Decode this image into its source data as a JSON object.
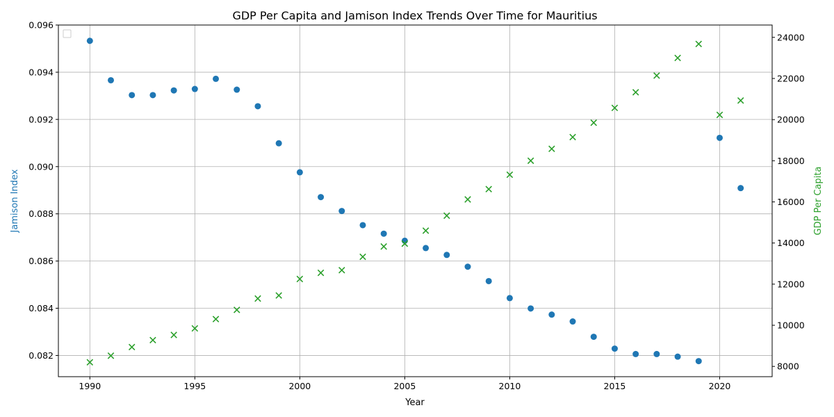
{
  "chart_data": {
    "type": "scatter",
    "title": "GDP Per Capita and Jamison Index Trends Over Time for Mauritius",
    "xlabel": "Year",
    "ylabel_left": "Jamison Index",
    "ylabel_right": "GDP Per Capita",
    "xlim": [
      1988.5,
      2022.5
    ],
    "ylim_left": [
      0.0811,
      0.096
    ],
    "ylim_right": [
      7500,
      24600
    ],
    "x_ticks": [
      1990,
      1995,
      2000,
      2005,
      2010,
      2015,
      2020
    ],
    "y_left_ticks": [
      "0.082",
      "0.084",
      "0.086",
      "0.088",
      "0.090",
      "0.092",
      "0.094",
      "0.096"
    ],
    "y_right_ticks": [
      8000,
      10000,
      12000,
      14000,
      16000,
      18000,
      20000,
      22000,
      24000
    ],
    "grid": true,
    "legend": "top-left (empty)",
    "series": [
      {
        "axis": "left",
        "marker": "circle",
        "color": "#1f77b4",
        "x": [
          1990,
          1991,
          1992,
          1993,
          1994,
          1995,
          1996,
          1997,
          1998,
          1999,
          2000,
          2001,
          2002,
          2003,
          2004,
          2005,
          2006,
          2007,
          2008,
          2009,
          2010,
          2011,
          2012,
          2013,
          2014,
          2015,
          2016,
          2017,
          2018,
          2019,
          2020,
          2021
        ],
        "values": [
          0.09533,
          0.09366,
          0.09303,
          0.09303,
          0.09323,
          0.09329,
          0.09372,
          0.09326,
          0.09256,
          0.09099,
          0.08976,
          0.08871,
          0.08812,
          0.08752,
          0.08716,
          0.08686,
          0.08655,
          0.08626,
          0.08576,
          0.08515,
          0.08443,
          0.08399,
          0.08373,
          0.08344,
          0.08279,
          0.08229,
          0.08206,
          0.08206,
          0.08195,
          0.08176,
          0.09122,
          0.08909
        ]
      },
      {
        "axis": "right",
        "marker": "x",
        "color": "#2ca02c",
        "x": [
          1990,
          1991,
          1992,
          1993,
          1994,
          1995,
          1996,
          1997,
          1998,
          1999,
          2000,
          2001,
          2002,
          2003,
          2004,
          2005,
          2006,
          2007,
          2008,
          2009,
          2010,
          2011,
          2012,
          2013,
          2014,
          2015,
          2016,
          2017,
          2018,
          2019,
          2020,
          2021
        ],
        "values": [
          8200,
          8520,
          8940,
          9280,
          9530,
          9850,
          10300,
          10750,
          11300,
          11450,
          12250,
          12550,
          12680,
          13330,
          13830,
          13970,
          14600,
          15330,
          16120,
          16620,
          17320,
          18000,
          18580,
          19150,
          19850,
          20570,
          21330,
          22140,
          23000,
          23680,
          20230,
          20930
        ]
      }
    ]
  }
}
